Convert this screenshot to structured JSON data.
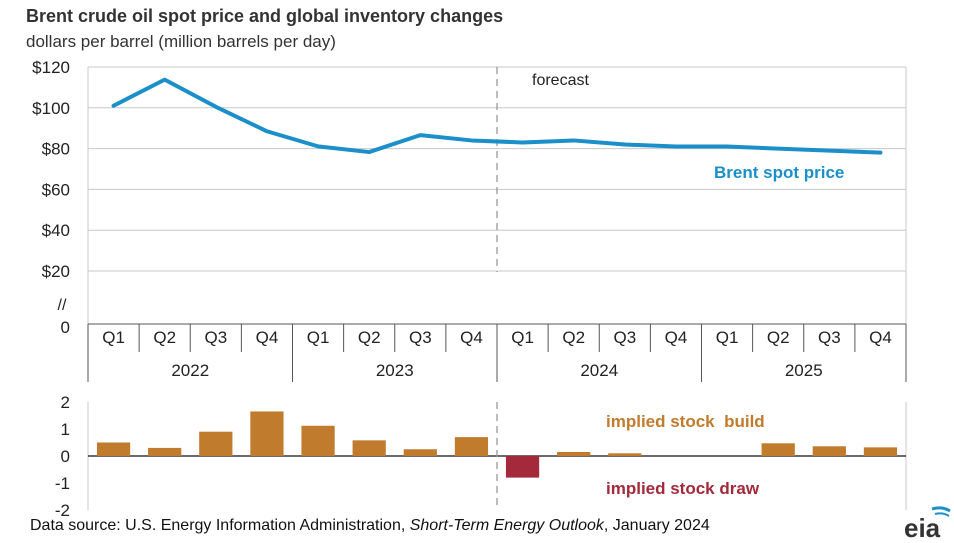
{
  "title": "Brent crude oil spot price and global inventory changes",
  "subtitle": "dollars per barrel (million barrels per day)",
  "source": {
    "prefix": "Data source: U.S. Energy Information Administration, ",
    "publication": "Short-Term Energy Outlook",
    "suffix": ", January 2024"
  },
  "logo_text": "eia",
  "colors": {
    "price_line": "#1a8fc9",
    "stock_build": "#c17b2c",
    "stock_draw": "#a3293b",
    "grid": "#c8c8c8",
    "axis": "#555555"
  },
  "chart_data": [
    {
      "type": "line",
      "quarters": [
        "Q1",
        "Q2",
        "Q3",
        "Q4",
        "Q1",
        "Q2",
        "Q3",
        "Q4",
        "Q1",
        "Q2",
        "Q3",
        "Q4",
        "Q1",
        "Q2",
        "Q3",
        "Q4"
      ],
      "years": [
        "2022",
        "2023",
        "2024",
        "2025"
      ],
      "series": [
        {
          "name": "Brent spot price",
          "values": [
            101,
            113.8,
            100.5,
            88.5,
            81.1,
            78.3,
            86.6,
            84,
            83,
            84,
            82,
            81,
            81,
            80,
            79,
            78
          ]
        }
      ],
      "ylim": [
        0,
        120
      ],
      "y_ticks": [
        {
          "value": 120,
          "label": "$120"
        },
        {
          "value": 100,
          "label": "$100"
        },
        {
          "value": 80,
          "label": "$80"
        },
        {
          "value": 60,
          "label": "$60"
        },
        {
          "value": 40,
          "label": "$40"
        },
        {
          "value": 20,
          "label": "$20"
        },
        {
          "value": 0,
          "label": "0"
        }
      ],
      "axis_break_label": "//",
      "forecast_label": "forecast",
      "forecast_starts_at": "2024 Q1",
      "grid": true
    },
    {
      "type": "bar",
      "series": [
        {
          "name": "implied stock build / draw",
          "values": [
            0.5,
            0.3,
            0.9,
            1.65,
            1.12,
            0.58,
            0.25,
            0.7,
            -0.8,
            0.15,
            0.1,
            0,
            0,
            0.47,
            0.36,
            0.32
          ]
        }
      ],
      "ylim": [
        -2,
        2
      ],
      "y_ticks": [
        {
          "value": 2,
          "label": "2"
        },
        {
          "value": 1,
          "label": "1"
        },
        {
          "value": 0,
          "label": "0"
        },
        {
          "value": -1,
          "label": "-1"
        },
        {
          "value": -2,
          "label": "-2"
        }
      ],
      "annotations": {
        "build": "implied stock  build",
        "draw": "implied stock draw"
      }
    }
  ]
}
